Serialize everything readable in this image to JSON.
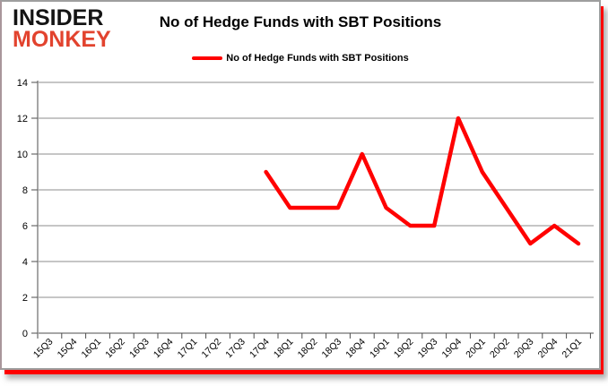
{
  "logo": {
    "line1": "INSIDER",
    "line2": "MONKEY"
  },
  "title": "No of Hedge Funds with SBT Positions",
  "legend": {
    "label": "No of Hedge Funds with SBT Positions"
  },
  "colors": {
    "line": "#ff0000",
    "logo_black": "#141414",
    "logo_red": "#e2432e",
    "grid": "#8c8c8c",
    "axis": "#4d4d4d",
    "text": "#000000",
    "frame_red": "#ff0000",
    "frame_gray": "#9e9e9e"
  },
  "chart_data": {
    "type": "line",
    "title": "No of Hedge Funds with SBT Positions",
    "xlabel": "",
    "ylabel": "",
    "ylim": [
      0,
      14
    ],
    "ytick_step": 2,
    "grid": true,
    "legend_position": "top-center",
    "categories": [
      "15Q3",
      "15Q4",
      "16Q1",
      "16Q2",
      "16Q3",
      "16Q4",
      "17Q1",
      "17Q2",
      "17Q3",
      "17Q4",
      "18Q1",
      "18Q2",
      "18Q3",
      "18Q4",
      "19Q1",
      "19Q2",
      "19Q3",
      "19Q4",
      "20Q1",
      "20Q2",
      "20Q3",
      "20Q4",
      "21Q1"
    ],
    "series": [
      {
        "name": "No of Hedge Funds with SBT Positions",
        "color": "#ff0000",
        "values": [
          null,
          null,
          null,
          null,
          null,
          null,
          null,
          null,
          null,
          9,
          7,
          7,
          7,
          10,
          7,
          6,
          6,
          12,
          9,
          7,
          5,
          6,
          5
        ]
      }
    ]
  }
}
